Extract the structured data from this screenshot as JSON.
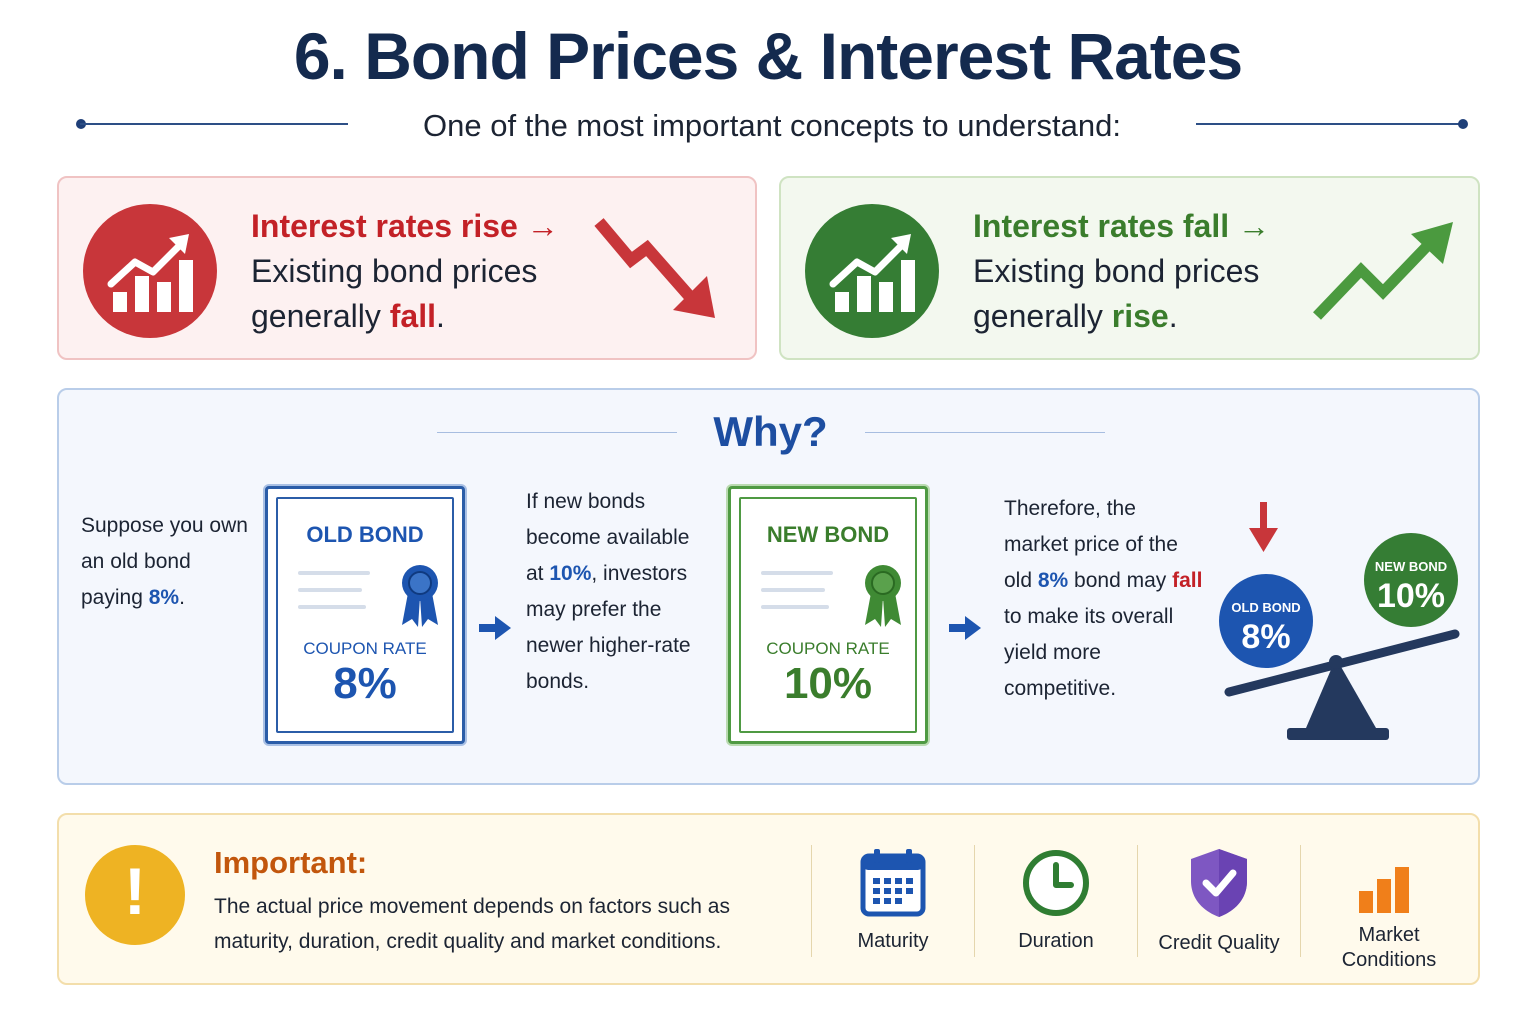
{
  "header": {
    "title": "6. Bond Prices & Interest Rates",
    "subtitle": "One of the most important concepts to understand:"
  },
  "cards": {
    "rise": {
      "head": "Interest rates rise →",
      "line1": "Existing bond prices",
      "line2_prefix": "generally ",
      "keyword": "fall",
      "suffix": ".",
      "color": "#c8363a"
    },
    "fall": {
      "head": "Interest rates fall →",
      "line1": "Existing bond prices",
      "line2_prefix": "generally ",
      "keyword": "rise",
      "suffix": ".",
      "color": "#357d34"
    }
  },
  "why": {
    "title": "Why?",
    "step1": {
      "l1": "Suppose you own",
      "l2": "an old bond",
      "l3_prefix": "paying ",
      "l3_value": "8%",
      "l3_suffix": "."
    },
    "old_bond": {
      "title": "OLD BOND",
      "label": "COUPON RATE",
      "rate": "8%"
    },
    "step2": {
      "l1": "If new bonds",
      "l2": "become available",
      "l3_prefix": "at ",
      "l3_value": "10%",
      "l3_suffix": ", investors",
      "l4": "may prefer the",
      "l5": "newer higher-rate",
      "l6": "bonds."
    },
    "new_bond": {
      "title": "NEW BOND",
      "label": "COUPON RATE",
      "rate": "10%"
    },
    "step3": {
      "l1": "Therefore, the",
      "l2": "market price of the",
      "l3_prefix": "old ",
      "l3_value": "8%",
      "l3_mid": " bond may ",
      "l3_keyword": "fall",
      "l4": "to make its overall",
      "l5": "yield more",
      "l6": "competitive."
    },
    "scale": {
      "old": {
        "label": "OLD BOND",
        "value": "8%"
      },
      "new": {
        "label": "NEW BOND",
        "value": "10%"
      }
    }
  },
  "important": {
    "title": "Important:",
    "line1": "The actual price movement depends on factors such as",
    "line2": "maturity, duration, credit quality and market conditions.",
    "factors": [
      {
        "label": "Maturity",
        "icon": "calendar-icon"
      },
      {
        "label": "Duration",
        "icon": "clock-icon"
      },
      {
        "label": "Credit Quality",
        "icon": "shield-check-icon"
      },
      {
        "label": "Market",
        "label2": "Conditions",
        "icon": "bar-chart-icon"
      }
    ]
  }
}
